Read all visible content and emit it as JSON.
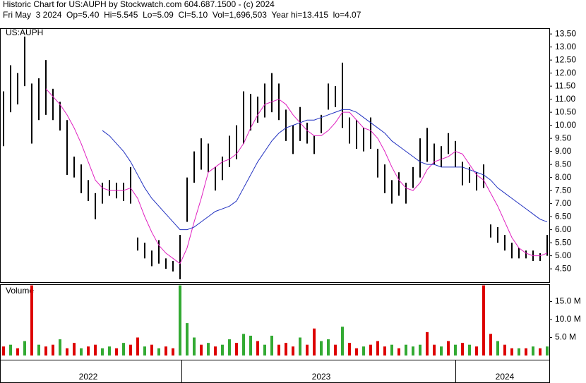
{
  "chart_data": {
    "type": "stock",
    "title": "Historic Chart for US:AUPH by Stockwatch.com 604.687.1500 - (c) 2024",
    "subtitle": "Fri May  3 2024  Op=5.40  Hi=5.545  Lo=5.09  Cl=5.10  Vol=1,696,503  Year hi=13.415  lo=4.07",
    "symbol": "US:AUPH",
    "volume_label": "Volume",
    "categories": [
      null,
      null,
      null,
      null,
      null,
      null,
      null,
      null,
      null,
      null,
      null,
      null,
      "2022",
      null,
      null,
      null,
      null,
      null,
      null,
      null,
      null,
      null,
      null,
      null,
      null,
      null,
      null,
      null,
      null,
      null,
      null,
      null,
      null,
      null,
      null,
      null,
      null,
      null,
      null,
      null,
      null,
      null,
      null,
      null,
      null,
      "2023",
      null,
      null,
      null,
      null,
      null,
      null,
      null,
      null,
      null,
      null,
      null,
      null,
      null,
      null,
      null,
      null,
      null,
      null,
      null,
      null,
      null,
      null,
      null,
      null,
      null,
      "2024",
      null,
      null,
      null,
      null,
      null,
      null
    ],
    "high": [
      11.3,
      12.3,
      12.0,
      13.4,
      11.6,
      11.8,
      12.5,
      11.4,
      10.9,
      10.2,
      8.8,
      8.5,
      7.9,
      7.4,
      7.8,
      7.9,
      7.8,
      7.8,
      8.4,
      5.7,
      5.5,
      5.2,
      5.6,
      4.9,
      4.8,
      5.8,
      8.0,
      9.0,
      9.5,
      9.3,
      8.4,
      8.8,
      9.6,
      10.0,
      11.3,
      11.2,
      11.1,
      11.6,
      12.0,
      11.6,
      10.6,
      10.0,
      10.7,
      10.1,
      9.6,
      10.4,
      11.6,
      11.5,
      12.4,
      10.3,
      10.2,
      9.9,
      10.3,
      9.1,
      8.5,
      7.9,
      8.2,
      7.8,
      8.4,
      9.5,
      9.9,
      9.3,
      9.2,
      9.7,
      9.4,
      8.6,
      8.4,
      8.2,
      8.5,
      6.2,
      6.1,
      5.8,
      5.5,
      5.3,
      5.2,
      5.2,
      5.1,
      5.8
    ],
    "low": [
      9.2,
      10.5,
      10.8,
      11.5,
      9.3,
      10.2,
      10.4,
      10.2,
      9.8,
      8.1,
      8.0,
      7.4,
      7.1,
      6.4,
      7.0,
      7.3,
      7.2,
      7.1,
      7.0,
      5.2,
      4.9,
      4.6,
      4.7,
      4.5,
      4.4,
      4.1,
      6.3,
      7.8,
      8.3,
      8.2,
      7.5,
      7.9,
      8.4,
      8.7,
      9.3,
      9.8,
      10.1,
      10.3,
      10.5,
      10.2,
      9.4,
      8.9,
      9.4,
      9.3,
      8.9,
      9.7,
      10.6,
      10.7,
      9.9,
      9.3,
      9.1,
      9.0,
      9.1,
      8.0,
      7.4,
      7.0,
      7.3,
      7.0,
      7.6,
      8.0,
      8.6,
      8.5,
      8.4,
      8.9,
      8.4,
      7.7,
      7.8,
      7.5,
      7.6,
      5.7,
      5.5,
      5.2,
      4.9,
      4.9,
      4.9,
      4.8,
      4.8,
      5.0
    ],
    "averages": [
      {
        "color": "#e020c0",
        "values": [
          null,
          null,
          null,
          null,
          null,
          null,
          11.4,
          11.1,
          10.8,
          10.4,
          9.9,
          9.3,
          8.6,
          7.9,
          7.6,
          7.5,
          7.5,
          7.5,
          7.6,
          7.2,
          6.5,
          5.9,
          5.4,
          5.1,
          4.9,
          4.7,
          5.3,
          6.3,
          7.2,
          8.2,
          8.4,
          8.6,
          8.7,
          8.9,
          9.3,
          9.9,
          10.4,
          10.8,
          10.9,
          11.0,
          10.8,
          10.4,
          10.1,
          9.8,
          9.6,
          9.6,
          9.8,
          10.1,
          10.5,
          10.5,
          10.2,
          9.9,
          9.8,
          9.5,
          9.0,
          8.4,
          7.9,
          7.6,
          7.5,
          7.8,
          8.3,
          8.6,
          8.7,
          8.8,
          9.0,
          8.9,
          8.5,
          8.1,
          7.9,
          7.4,
          6.9,
          6.3,
          5.7,
          5.3,
          5.1,
          5.0,
          5.0,
          5.1
        ]
      },
      {
        "color": "#2030c0",
        "values": [
          null,
          null,
          null,
          null,
          null,
          null,
          null,
          null,
          null,
          null,
          null,
          null,
          null,
          null,
          9.8,
          9.6,
          9.3,
          9.0,
          8.6,
          8.1,
          7.6,
          7.2,
          6.9,
          6.6,
          6.3,
          6.0,
          6.0,
          6.1,
          6.3,
          6.5,
          6.7,
          6.8,
          6.9,
          7.1,
          7.6,
          8.1,
          8.6,
          9.0,
          9.4,
          9.7,
          9.9,
          10.0,
          10.1,
          10.2,
          10.2,
          10.3,
          10.4,
          10.5,
          10.6,
          10.6,
          10.5,
          10.3,
          10.1,
          9.9,
          9.7,
          9.4,
          9.2,
          9.0,
          8.8,
          8.6,
          8.5,
          8.5,
          8.4,
          8.4,
          8.4,
          8.4,
          8.3,
          8.2,
          8.1,
          7.9,
          7.6,
          7.4,
          7.2,
          7.0,
          6.8,
          6.6,
          6.4,
          6.3
        ]
      }
    ],
    "ylim": [
      3.99,
      13.72
    ],
    "yticks": [
      {
        "value": 4.5,
        "label": "4.50"
      },
      {
        "value": 5,
        "label": "5.00"
      },
      {
        "value": 5.5,
        "label": "5.50"
      },
      {
        "value": 6,
        "label": "6.00"
      },
      {
        "value": 6.5,
        "label": "6.50"
      },
      {
        "value": 7,
        "label": "7.00"
      },
      {
        "value": 7.5,
        "label": "7.50"
      },
      {
        "value": 8,
        "label": "8.00"
      },
      {
        "value": 8.5,
        "label": "8.50"
      },
      {
        "value": 9,
        "label": "9.00"
      },
      {
        "value": 9.5,
        "label": "9.50"
      },
      {
        "value": 10,
        "label": "10.00"
      },
      {
        "value": 10.5,
        "label": "10.50"
      },
      {
        "value": 11,
        "label": "11.00"
      },
      {
        "value": 11.5,
        "label": "11.50"
      },
      {
        "value": 12,
        "label": "12.00"
      },
      {
        "value": 12.5,
        "label": "12.50"
      },
      {
        "value": 13,
        "label": "13.00"
      },
      {
        "value": 13.5,
        "label": "13.50"
      }
    ],
    "volume": [
      2.5,
      3,
      2,
      4,
      19.5,
      3,
      2.5,
      3,
      4.5,
      2,
      3.5,
      2,
      2.5,
      3,
      2,
      2.5,
      2,
      3.5,
      3,
      5,
      2.5,
      3,
      2,
      2.5,
      2,
      19.5,
      9,
      5,
      3,
      3.5,
      2.5,
      3,
      4.5,
      3.5,
      6,
      5.5,
      4,
      3,
      5.5,
      3,
      3.5,
      2.5,
      5,
      3,
      7.5,
      4,
      4.5,
      3,
      8,
      3.5,
      2,
      2.5,
      3,
      4,
      2.5,
      3,
      2,
      3,
      2.5,
      3,
      6.5,
      3,
      2.5,
      4,
      3,
      3.5,
      3,
      2.5,
      19.5,
      6,
      4,
      3,
      2,
      2,
      2,
      2.5,
      2,
      2.5
    ],
    "volume_colors": [
      "#dd0000",
      "#33aa33",
      "#dd0000",
      "#33aa33",
      "#dd0000",
      "#33aa33",
      "#dd0000",
      "#dd0000",
      "#33aa33",
      "#dd0000",
      "#dd0000",
      "#33aa33",
      "#dd0000",
      "#dd0000",
      "#33aa33",
      "#33aa33",
      "#dd0000",
      "#33aa33",
      "#dd0000",
      "#dd0000",
      "#33aa33",
      "#dd0000",
      "#33aa33",
      "#dd0000",
      "#dd0000",
      "#33aa33",
      "#33aa33",
      "#33aa33",
      "#dd0000",
      "#33aa33",
      "#dd0000",
      "#33aa33",
      "#33aa33",
      "#dd0000",
      "#33aa33",
      "#33aa33",
      "#dd0000",
      "#33aa33",
      "#33aa33",
      "#dd0000",
      "#dd0000",
      "#dd0000",
      "#33aa33",
      "#dd0000",
      "#dd0000",
      "#33aa33",
      "#33aa33",
      "#dd0000",
      "#33aa33",
      "#dd0000",
      "#dd0000",
      "#33aa33",
      "#dd0000",
      "#dd0000",
      "#dd0000",
      "#33aa33",
      "#dd0000",
      "#33aa33",
      "#33aa33",
      "#33aa33",
      "#dd0000",
      "#dd0000",
      "#33aa33",
      "#dd0000",
      "#33aa33",
      "#dd0000",
      "#33aa33",
      "#dd0000",
      "#dd0000",
      "#dd0000",
      "#33aa33",
      "#dd0000",
      "#dd0000",
      "#33aa33",
      "#dd0000",
      "#33aa33",
      "#dd0000",
      "#33aa33"
    ],
    "volume_ylim": [
      0,
      19.8
    ],
    "volume_yticks": [
      {
        "value": 5,
        "label": "5.0 M"
      },
      {
        "value": 10,
        "label": "10.0 M"
      },
      {
        "value": 15,
        "label": "15.0 M"
      }
    ]
  }
}
